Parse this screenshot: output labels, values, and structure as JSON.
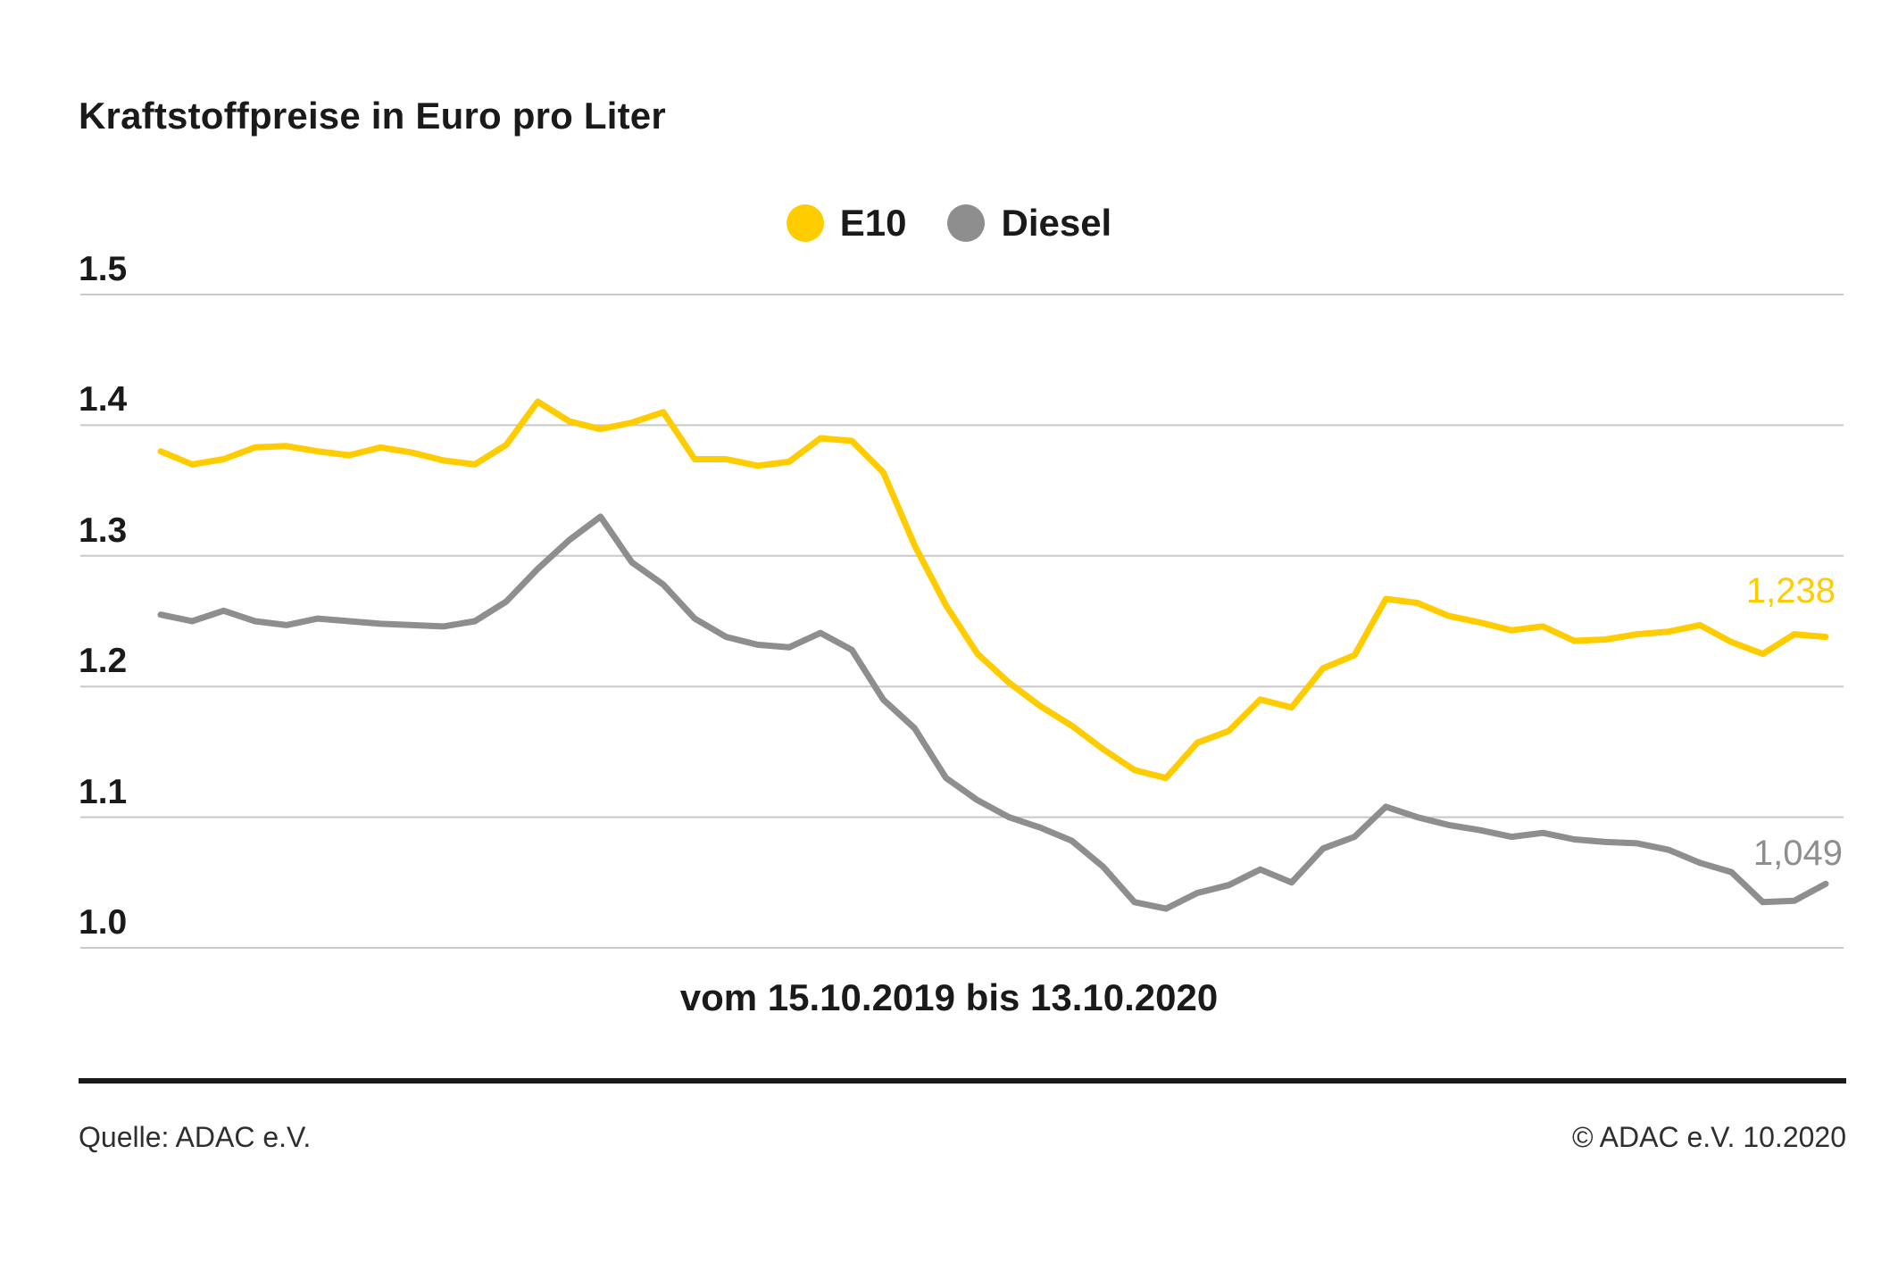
{
  "title": "Kraftstoffpreise in Euro pro Liter",
  "caption": "vom 15.10.2019 bis 13.10.2020",
  "footer": {
    "source": "Quelle: ADAC e.V.",
    "copyright": "© ADAC e.V. 10.2020"
  },
  "chart_data": {
    "type": "line",
    "title": "Kraftstoffpreise in Euro pro Liter",
    "x_range_label": "vom 15.10.2019 bis 13.10.2020",
    "ylabel": "Euro pro Liter",
    "ylim": [
      1.0,
      1.5
    ],
    "grid": true,
    "legend_position": "top-center",
    "yticks": [
      {
        "label": "1.5",
        "value": 1.5
      },
      {
        "label": "1.4",
        "value": 1.4
      },
      {
        "label": "1.3",
        "value": 1.3
      },
      {
        "label": "1.2",
        "value": 1.2
      },
      {
        "label": "1.1",
        "value": 1.1
      },
      {
        "label": "1.0",
        "value": 1.0
      }
    ],
    "series": [
      {
        "name": "E10",
        "color": "#FFCC00",
        "end_label": "1,238",
        "end_value": 1.238,
        "values": [
          1.38,
          1.37,
          1.374,
          1.383,
          1.384,
          1.38,
          1.377,
          1.383,
          1.379,
          1.373,
          1.37,
          1.385,
          1.418,
          1.403,
          1.397,
          1.402,
          1.41,
          1.374,
          1.374,
          1.369,
          1.372,
          1.39,
          1.388,
          1.364,
          1.308,
          1.262,
          1.225,
          1.203,
          1.185,
          1.17,
          1.152,
          1.136,
          1.13,
          1.157,
          1.166,
          1.19,
          1.184,
          1.214,
          1.224,
          1.267,
          1.264,
          1.254,
          1.249,
          1.243,
          1.246,
          1.235,
          1.236,
          1.24,
          1.242,
          1.247,
          1.234,
          1.225,
          1.24,
          1.238
        ]
      },
      {
        "name": "Diesel",
        "color": "#8E8E8E",
        "end_label": "1,049",
        "end_value": 1.049,
        "values": [
          1.255,
          1.25,
          1.258,
          1.25,
          1.247,
          1.252,
          1.25,
          1.248,
          1.247,
          1.246,
          1.25,
          1.265,
          1.29,
          1.312,
          1.33,
          1.295,
          1.278,
          1.252,
          1.238,
          1.232,
          1.23,
          1.241,
          1.228,
          1.19,
          1.168,
          1.13,
          1.113,
          1.1,
          1.092,
          1.082,
          1.062,
          1.035,
          1.03,
          1.042,
          1.048,
          1.06,
          1.05,
          1.076,
          1.085,
          1.108,
          1.1,
          1.094,
          1.09,
          1.085,
          1.088,
          1.083,
          1.081,
          1.08,
          1.075,
          1.065,
          1.058,
          1.035,
          1.036,
          1.049
        ]
      }
    ]
  }
}
